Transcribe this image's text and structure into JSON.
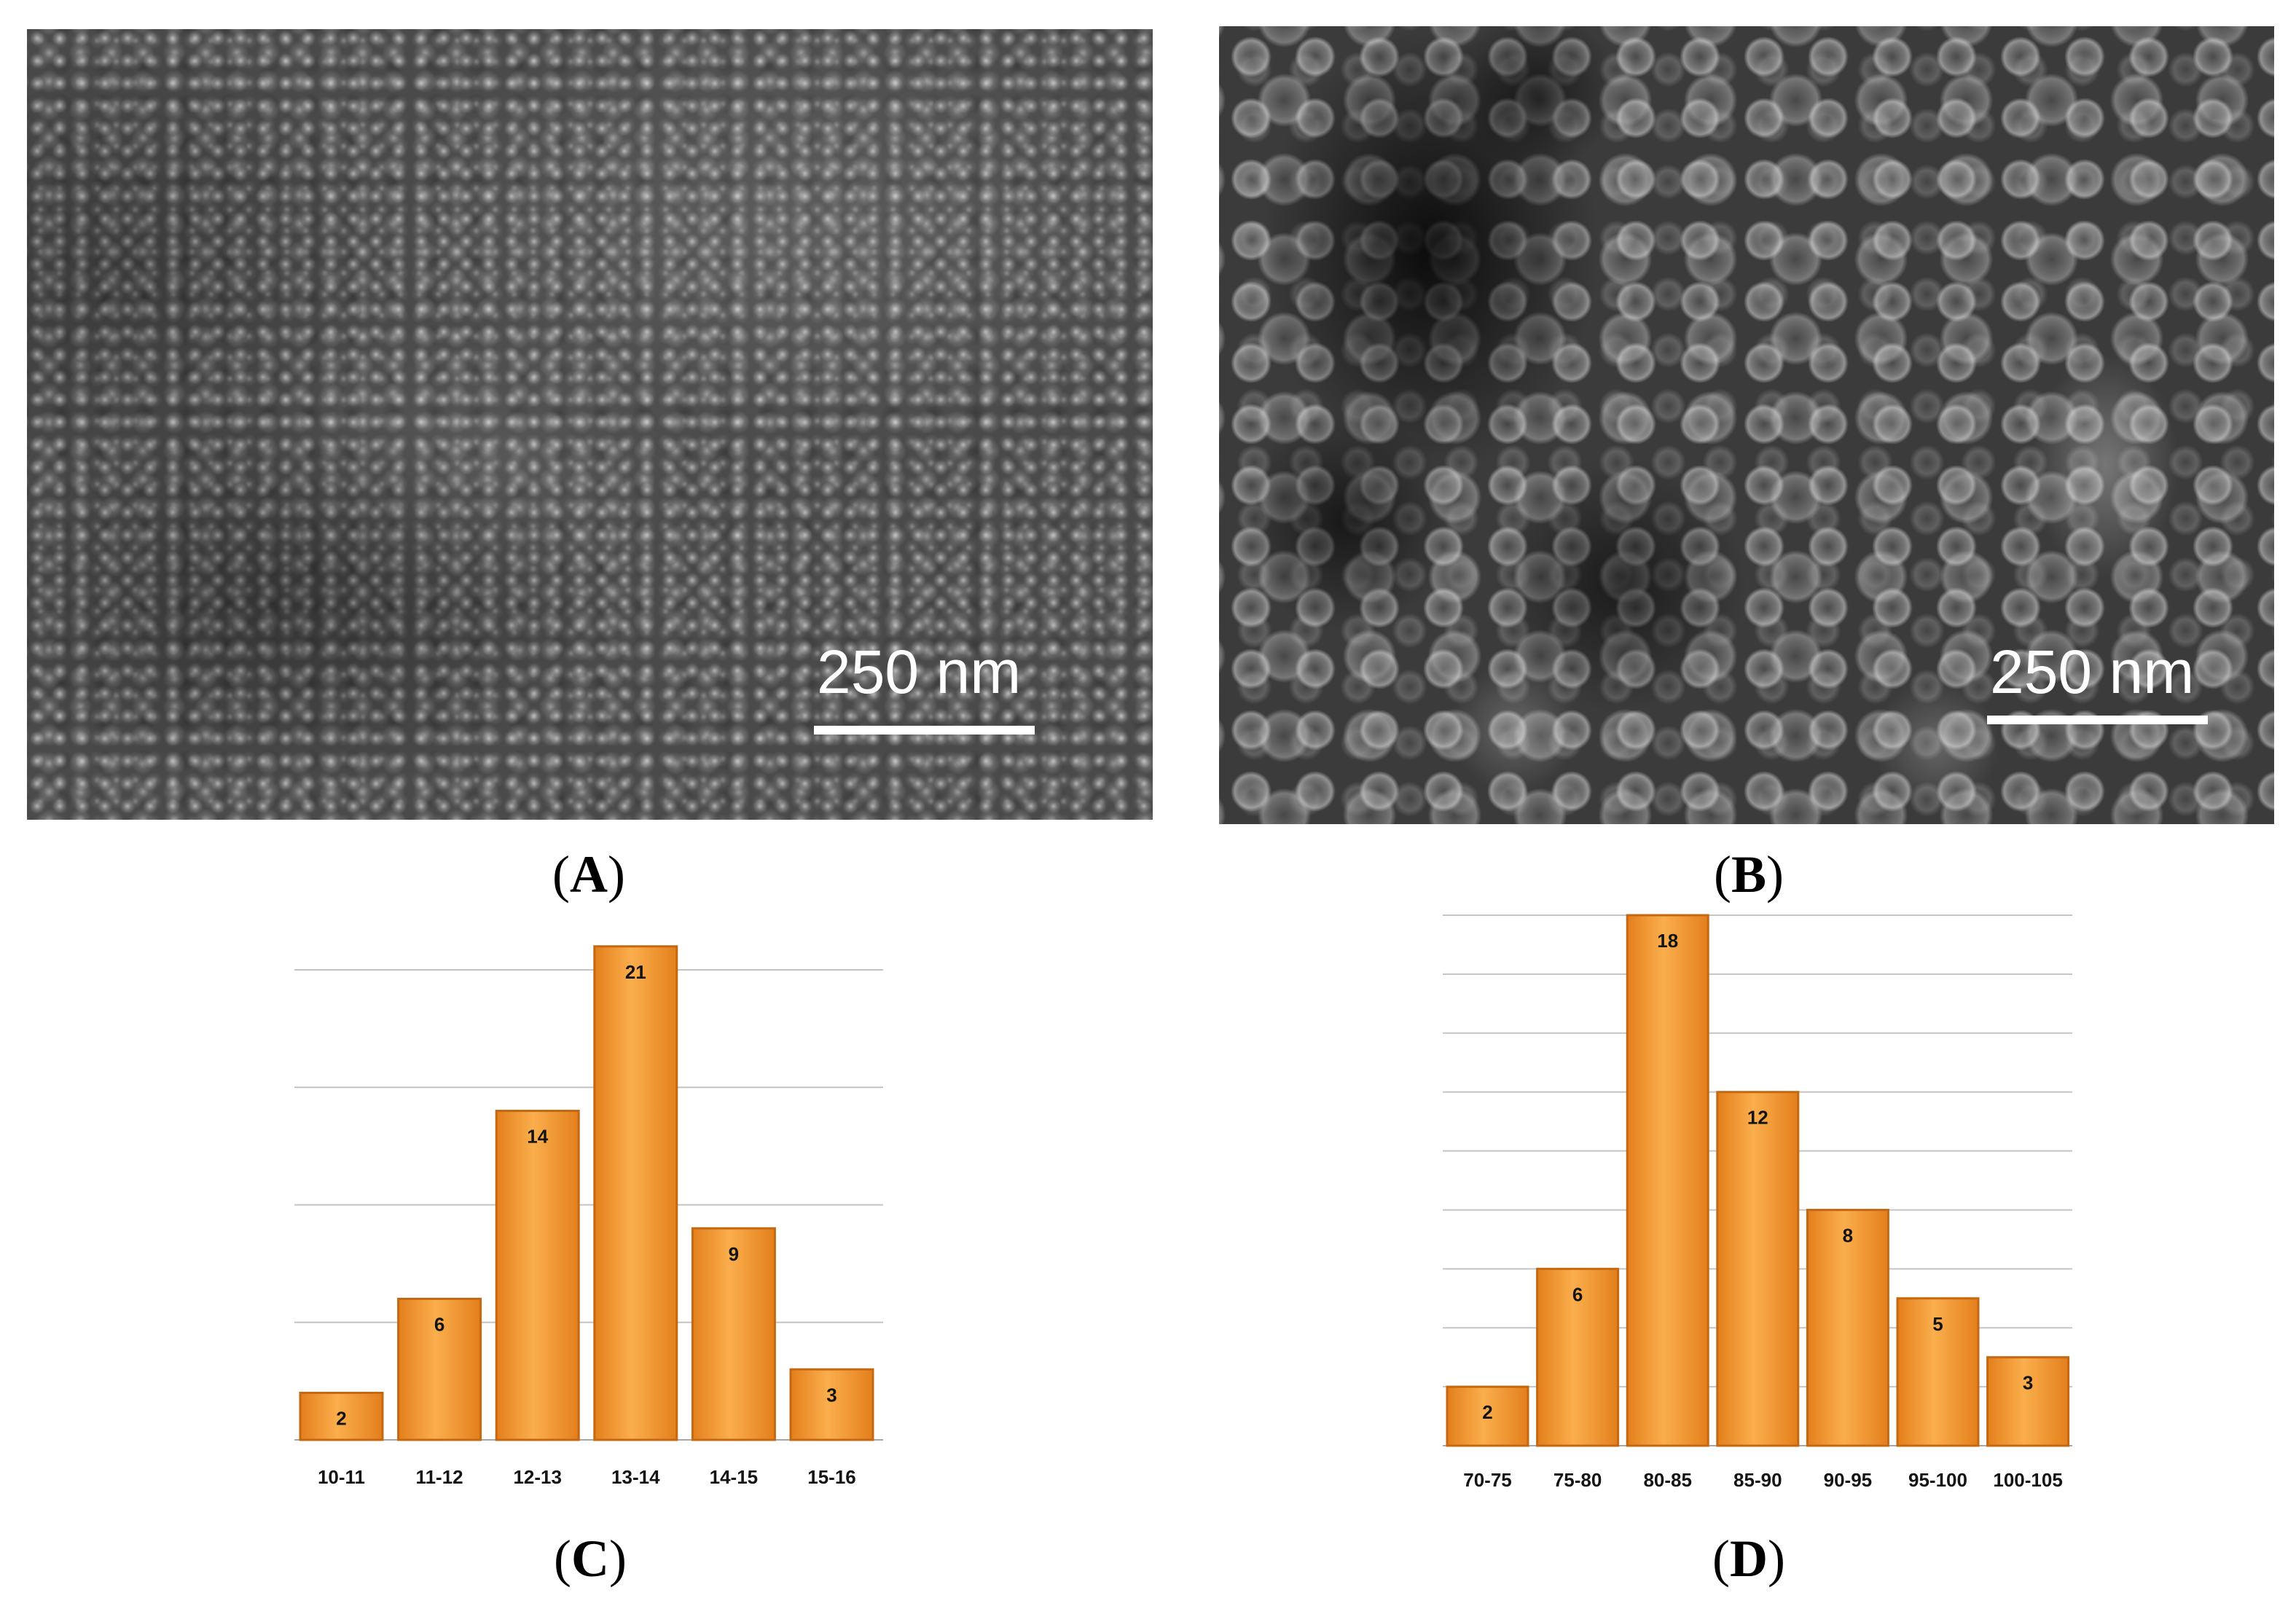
{
  "figure": {
    "paren_open": "(",
    "paren_close": ")",
    "panels": [
      {
        "letter": "A",
        "scale_bar_label": "250 nm"
      },
      {
        "letter": "B",
        "scale_bar_label": "250 nm"
      },
      {
        "letter": "C"
      },
      {
        "letter": "D"
      }
    ]
  },
  "colors": {
    "bar_light": "#fbae4c",
    "bar_dark": "#e37f1c",
    "bar_stroke": "#c46812",
    "gridline": "#c4c4c4",
    "axis": "#a8a8a8",
    "scale_bar": "#ffffff"
  },
  "chart_data": [
    {
      "type": "bar",
      "categories": [
        "10-11",
        "11-12",
        "12-13",
        "13-14",
        "14-15",
        "15-16"
      ],
      "values": [
        2,
        6,
        14,
        21,
        9,
        3
      ],
      "data_labels": true,
      "ylim": [
        0,
        20
      ],
      "grid": true,
      "grid_step": 5,
      "legend": "none"
    },
    {
      "type": "bar",
      "categories": [
        "70-75",
        "75-80",
        "80-85",
        "85-90",
        "90-95",
        "95-100",
        "100-105"
      ],
      "values": [
        2,
        6,
        18,
        12,
        8,
        5,
        3
      ],
      "data_labels": true,
      "ylim": [
        0,
        18
      ],
      "grid": true,
      "grid_step": 2,
      "legend": "none"
    }
  ]
}
